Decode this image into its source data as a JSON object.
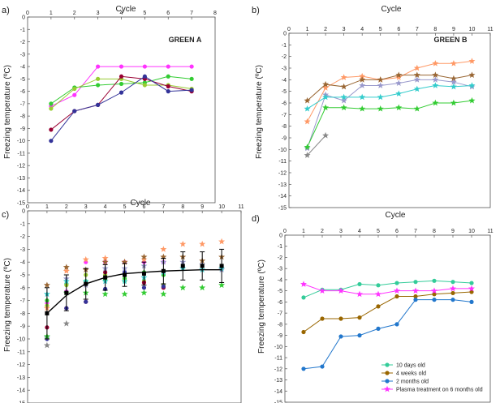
{
  "chart_data": [
    {
      "panel": "a)",
      "type": "line",
      "title": "Cycle",
      "inset_title": "GREEN A",
      "ylabel": "Freezing temperature (ºC)",
      "xlim": [
        0,
        8
      ],
      "ylim": [
        -15,
        0
      ],
      "x_ticks": [
        0,
        1,
        2,
        3,
        4,
        5,
        6,
        7,
        8
      ],
      "y_ticks": [
        0,
        -1,
        -2,
        -3,
        -4,
        -5,
        -6,
        -7,
        -8,
        -9,
        -10,
        -11,
        -12,
        -13,
        -14,
        -15
      ],
      "x_tick_labels": [
        "0",
        "1",
        "2",
        "3",
        "4",
        "5",
        "6",
        "7",
        "8"
      ],
      "y_tick_labels": [
        "0",
        "-1",
        "-2",
        "-3",
        "-4",
        "-5",
        "-6",
        "-7",
        "-8",
        "-9",
        "-10",
        "-11",
        "-12",
        "-13",
        "-14",
        "-15"
      ],
      "series": [
        {
          "name": "pink",
          "color": "#ff33ff",
          "marker": "circle",
          "x": [
            1,
            2,
            3,
            4,
            5,
            6,
            7
          ],
          "values": [
            -7.2,
            -6.3,
            -4.0,
            -4.0,
            -4.0,
            -4.0,
            -4.0
          ]
        },
        {
          "name": "green",
          "color": "#33cc33",
          "marker": "circle",
          "x": [
            1,
            2,
            3,
            4,
            5,
            6,
            7
          ],
          "values": [
            -7.0,
            -5.7,
            -5.5,
            -5.4,
            -5.3,
            -4.8,
            -5.0
          ]
        },
        {
          "name": "light-green",
          "color": "#99cc33",
          "marker": "circle",
          "x": [
            1,
            2,
            3,
            4,
            5,
            6,
            7
          ],
          "values": [
            -7.4,
            -5.8,
            -5.0,
            -5.0,
            -5.5,
            -5.5,
            -5.8
          ]
        },
        {
          "name": "dark-red",
          "color": "#990033",
          "marker": "circle",
          "x": [
            1,
            2,
            3,
            4,
            5,
            6,
            7
          ],
          "values": [
            -9.1,
            -7.6,
            -7.1,
            -4.8,
            -5.0,
            -5.6,
            -6.0
          ]
        },
        {
          "name": "navy",
          "color": "#333399",
          "marker": "circle",
          "x": [
            1,
            2,
            3,
            4,
            5,
            6,
            7
          ],
          "values": [
            -10.0,
            -7.6,
            -7.1,
            -6.1,
            -4.8,
            -6.0,
            -5.9
          ]
        }
      ]
    },
    {
      "panel": "b)",
      "type": "line",
      "title": "Cycle",
      "inset_title": "GREEN B",
      "ylabel": "Freezing temperature (ºC)",
      "xlim": [
        0,
        11
      ],
      "ylim": [
        -15,
        0
      ],
      "x_ticks": [
        0,
        1,
        2,
        3,
        4,
        5,
        6,
        7,
        8,
        9,
        10,
        11
      ],
      "y_ticks": [
        0,
        -1,
        -2,
        -3,
        -4,
        -5,
        -6,
        -7,
        -8,
        -9,
        -10,
        -11,
        -12,
        -13,
        -14,
        -15
      ],
      "x_tick_labels": [
        "0",
        "1",
        "2",
        "3",
        "4",
        "5",
        "6",
        "7",
        "8",
        "9",
        "10",
        "11"
      ],
      "y_tick_labels": [
        "0",
        "-1",
        "-2",
        "-3",
        "-4",
        "-5",
        "-6",
        "-7",
        "-8",
        "-9",
        "-10",
        "-11",
        "-12",
        "-13",
        "-14",
        "-15"
      ],
      "series": [
        {
          "name": "orange",
          "color": "#ff9966",
          "marker": "star",
          "x": [
            1,
            2,
            3,
            4,
            5,
            6,
            7,
            8,
            9,
            10
          ],
          "values": [
            -7.6,
            -4.7,
            -3.8,
            -3.7,
            -4.0,
            -3.8,
            -3.0,
            -2.6,
            -2.6,
            -2.4
          ]
        },
        {
          "name": "brown",
          "color": "#996633",
          "marker": "star",
          "x": [
            1,
            2,
            3,
            4,
            5,
            6,
            7,
            8,
            9,
            10
          ],
          "values": [
            -5.8,
            -4.4,
            -4.6,
            -4.0,
            -4.0,
            -3.6,
            -3.6,
            -3.6,
            -3.9,
            -3.6
          ]
        },
        {
          "name": "gray-violet",
          "color": "#9999cc",
          "marker": "star",
          "x": [
            1,
            2,
            3,
            4,
            5,
            6,
            7,
            8,
            9,
            10
          ],
          "values": [
            -9.9,
            -5.3,
            -5.8,
            -4.5,
            -4.5,
            -4.3,
            -4.0,
            -4.0,
            -4.2,
            -4.6
          ]
        },
        {
          "name": "teal",
          "color": "#33cccc",
          "marker": "star",
          "x": [
            1,
            2,
            3,
            4,
            5,
            6,
            7,
            8,
            9,
            10
          ],
          "values": [
            -6.5,
            -5.5,
            -5.5,
            -5.5,
            -5.5,
            -5.2,
            -4.8,
            -4.5,
            -4.6,
            -4.5
          ]
        },
        {
          "name": "green",
          "color": "#33cc33",
          "marker": "star",
          "x": [
            1,
            2,
            3,
            4,
            5,
            6,
            7,
            8,
            9,
            10
          ],
          "values": [
            -9.8,
            -6.4,
            -6.4,
            -6.5,
            -6.5,
            -6.4,
            -6.5,
            -6.0,
            -6.0,
            -5.8
          ]
        },
        {
          "name": "gray",
          "color": "#888888",
          "marker": "star",
          "x": [
            1,
            2
          ],
          "values": [
            -10.5,
            -8.8
          ]
        }
      ]
    },
    {
      "panel": "c)",
      "type": "scatter",
      "title": "Cycle",
      "ylabel": "Freezing temperature (ºC)",
      "xlim": [
        0,
        11
      ],
      "ylim": [
        -15,
        0
      ],
      "x_ticks": [
        0,
        1,
        2,
        3,
        4,
        5,
        6,
        7,
        8,
        9,
        10,
        11
      ],
      "y_ticks": [
        0,
        -1,
        -2,
        -3,
        -4,
        -5,
        -6,
        -7,
        -8,
        -9,
        -10,
        -11,
        -12,
        -13,
        -14,
        -15
      ],
      "x_tick_labels": [
        "0",
        "1",
        "2",
        "3",
        "4",
        "5",
        "6",
        "7",
        "8",
        "9",
        "10",
        "11"
      ],
      "y_tick_labels": [
        "0",
        "-1",
        "-2",
        "-3",
        "-4",
        "-5",
        "-6",
        "-7",
        "-8",
        "-9",
        "-10",
        "-11",
        "-12",
        "-13",
        "-14",
        "-15"
      ],
      "mean": {
        "x": [
          1,
          2,
          3,
          4,
          5,
          6,
          7,
          8,
          9,
          10
        ],
        "values": [
          -8.0,
          -6.4,
          -5.7,
          -5.2,
          -5.0,
          -4.9,
          -4.7,
          -4.3,
          -4.3,
          -4.3
        ],
        "error": [
          2.0,
          1.4,
          1.2,
          1.0,
          0.9,
          0.9,
          1.0,
          1.1,
          1.1,
          1.3
        ],
        "color": "#000000"
      },
      "fit": {
        "x": [
          1,
          2,
          3,
          4,
          5,
          6,
          7,
          8,
          9,
          10
        ],
        "values": [
          -8.0,
          -6.6,
          -5.7,
          -5.2,
          -4.9,
          -4.8,
          -4.7,
          -4.65,
          -4.6,
          -4.6
        ],
        "color": "#000000"
      },
      "scatter": [
        {
          "color": "#ff33ff",
          "marker": "circle",
          "x": [
            1,
            2,
            3,
            4,
            5,
            6,
            7
          ],
          "values": [
            -7.2,
            -6.3,
            -4.0,
            -4.0,
            -4.0,
            -4.0,
            -4.0
          ]
        },
        {
          "color": "#33cc33",
          "marker": "circle",
          "x": [
            1,
            2,
            3,
            4,
            5,
            6,
            7
          ],
          "values": [
            -7.0,
            -5.7,
            -5.5,
            -5.4,
            -5.3,
            -4.8,
            -5.0
          ]
        },
        {
          "color": "#99cc33",
          "marker": "circle",
          "x": [
            1,
            2,
            3,
            4,
            5,
            6,
            7
          ],
          "values": [
            -7.4,
            -5.8,
            -5.0,
            -5.0,
            -5.5,
            -5.5,
            -5.8
          ]
        },
        {
          "color": "#990033",
          "marker": "circle",
          "x": [
            1,
            2,
            3,
            4,
            5,
            6,
            7
          ],
          "values": [
            -9.1,
            -7.6,
            -7.1,
            -4.8,
            -5.0,
            -5.6,
            -6.0
          ]
        },
        {
          "color": "#333399",
          "marker": "circle",
          "x": [
            1,
            2,
            3,
            4,
            5,
            6,
            7
          ],
          "values": [
            -10.0,
            -7.6,
            -7.1,
            -6.1,
            -4.8,
            -6.0,
            -5.9
          ]
        },
        {
          "color": "#ff9966",
          "marker": "star",
          "x": [
            1,
            2,
            3,
            4,
            5,
            6,
            7,
            8,
            9,
            10
          ],
          "values": [
            -7.6,
            -4.7,
            -3.8,
            -3.7,
            -4.0,
            -3.8,
            -3.0,
            -2.6,
            -2.6,
            -2.4
          ]
        },
        {
          "color": "#996633",
          "marker": "star",
          "x": [
            1,
            2,
            3,
            4,
            5,
            6,
            7,
            8,
            9,
            10
          ],
          "values": [
            -5.8,
            -4.4,
            -4.6,
            -4.0,
            -4.0,
            -3.6,
            -3.6,
            -3.6,
            -3.9,
            -3.6
          ]
        },
        {
          "color": "#9999cc",
          "marker": "star",
          "x": [
            1,
            2,
            3,
            4,
            5,
            6,
            7,
            8,
            9,
            10
          ],
          "values": [
            -9.9,
            -5.3,
            -5.8,
            -4.5,
            -4.5,
            -4.3,
            -4.0,
            -4.0,
            -4.2,
            -4.6
          ]
        },
        {
          "color": "#33cccc",
          "marker": "star",
          "x": [
            1,
            2,
            3,
            4,
            5,
            6,
            7,
            8,
            9,
            10
          ],
          "values": [
            -6.5,
            -5.5,
            -5.5,
            -5.5,
            -5.5,
            -5.2,
            -4.8,
            -4.5,
            -4.6,
            -4.5
          ]
        },
        {
          "color": "#33cc33",
          "marker": "star",
          "x": [
            1,
            2,
            3,
            4,
            5,
            6,
            7,
            8,
            9,
            10
          ],
          "values": [
            -9.8,
            -6.4,
            -6.4,
            -6.5,
            -6.5,
            -6.4,
            -6.5,
            -6.0,
            -6.0,
            -5.8
          ]
        },
        {
          "color": "#888888",
          "marker": "star",
          "x": [
            1,
            2
          ],
          "values": [
            -10.5,
            -8.8
          ]
        }
      ]
    },
    {
      "panel": "d)",
      "type": "line",
      "title": "Cycle",
      "ylabel": "Freezing temperature (ºC)",
      "xlim": [
        0,
        11
      ],
      "ylim": [
        -15,
        0
      ],
      "x_ticks": [
        0,
        1,
        2,
        3,
        4,
        5,
        6,
        7,
        8,
        9,
        10,
        11
      ],
      "y_ticks": [
        0,
        -1,
        -2,
        -3,
        -4,
        -5,
        -6,
        -7,
        -8,
        -9,
        -10,
        -11,
        -12,
        -13,
        -14,
        -15
      ],
      "x_tick_labels": [
        "0",
        "1",
        "2",
        "3",
        "4",
        "5",
        "6",
        "7",
        "8",
        "9",
        "10",
        "11"
      ],
      "y_tick_labels": [
        "0",
        "-1",
        "-2",
        "-3",
        "-4",
        "-5",
        "-6",
        "-7",
        "-8",
        "-9",
        "-10",
        "-11",
        "-12",
        "-13",
        "-14",
        "-15"
      ],
      "legend_position": "bottom-right",
      "series": [
        {
          "name": "10 days old",
          "color": "#33cc99",
          "marker": "circle",
          "x": [
            1,
            2,
            3,
            4,
            5,
            6,
            7,
            8,
            9,
            10
          ],
          "values": [
            -5.6,
            -4.9,
            -4.9,
            -4.4,
            -4.5,
            -4.3,
            -4.2,
            -4.1,
            -4.2,
            -4.3
          ]
        },
        {
          "name": "4 weeks old",
          "color": "#996600",
          "marker": "circle",
          "x": [
            1,
            2,
            3,
            4,
            5,
            6,
            7,
            8,
            9,
            10
          ],
          "values": [
            -8.7,
            -7.5,
            -7.5,
            -7.4,
            -6.4,
            -5.5,
            -5.5,
            -5.3,
            -5.2,
            -5.1
          ]
        },
        {
          "name": "2 months old",
          "color": "#2277cc",
          "marker": "circle",
          "x": [
            1,
            2,
            3,
            4,
            5,
            6,
            7,
            8,
            9,
            10
          ],
          "values": [
            -12.0,
            -11.8,
            -9.1,
            -9.0,
            -8.4,
            -8.0,
            -5.8,
            -5.8,
            -5.8,
            -6.0
          ]
        },
        {
          "name": "Plasma treatment on 6 months old",
          "color": "#ff33ff",
          "marker": "star",
          "x": [
            1,
            2,
            3,
            4,
            5,
            6,
            7,
            8,
            9,
            10
          ],
          "values": [
            -4.4,
            -5.0,
            -5.0,
            -5.3,
            -5.3,
            -5.0,
            -5.0,
            -5.0,
            -4.8,
            -4.8
          ]
        }
      ]
    }
  ]
}
